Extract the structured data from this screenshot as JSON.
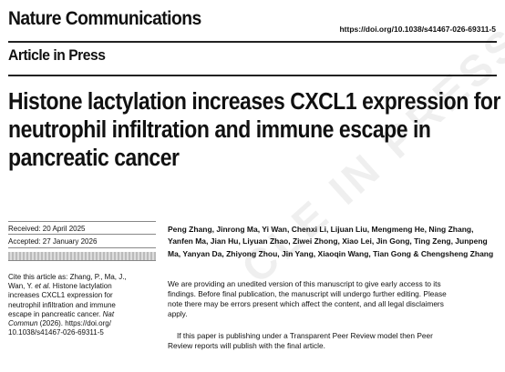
{
  "header": {
    "journal": "Nature Communications",
    "doi_url": "https://doi.org/10.1038/s41467-026-69311-5",
    "section": "Article in Press"
  },
  "article": {
    "title_lines": [
      "Histone lactylation increases CXCL1 expression for",
      "neutrophil infiltration and immune escape in",
      "pancreatic cancer"
    ],
    "received": "Received: 20 April 2025",
    "accepted": "Accepted: 27 January 2026",
    "citation_lines": [
      "Cite this article as: Zhang, P., Ma, J.,",
      "Wan, Y. et al. Histone lactylation",
      "increases CXCL1 expression for",
      "neutrophil infiltration and immune",
      "escape in pancreatic cancer. Nat",
      "Commun (2026). https://doi.org/",
      "10.1038/s41467-026-69311-5"
    ],
    "author_lines": [
      "Peng Zhang, Jinrong Ma, Yi Wan, Chenxi Li, Lijuan Liu, Mengmeng He, Ning Zhang,",
      "Yanfen Ma, Jian Hu, Liyuan Zhao, Ziwei Zhong, Xiao Lei, Jin Gong, Ting Zeng, Junpeng",
      "Ma, Yanyan Da, Zhiyong Zhou, Jin Yang, Xiaoqin Wang, Tian Gong & Chengsheng Zhang"
    ],
    "notice_lines": [
      "We are providing an unedited version of this manuscript to give early access to its",
      "findings. Before final publication, the manuscript will undergo further editing. Please",
      "note there may be errors present which affect the content, and all legal disclaimers",
      "apply."
    ],
    "peer_review_lines": [
      "If this paper is publishing under a Transparent Peer Review model then Peer",
      "Review reports will publish with the final article."
    ],
    "watermark": "CLE IN PRESS"
  }
}
